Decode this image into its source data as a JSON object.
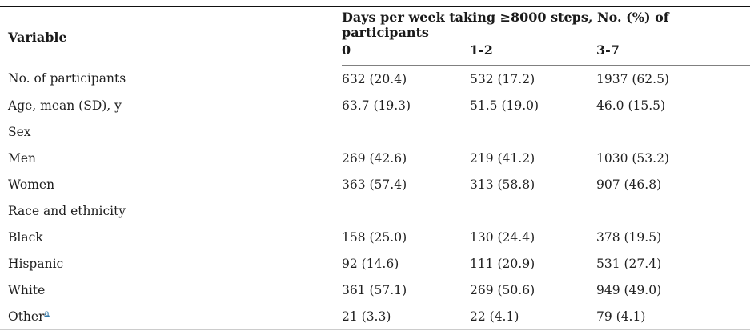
{
  "table": {
    "header": {
      "variable_label": "Variable",
      "group_label": "Days per week taking ≥8000 steps, No. (%) of participants",
      "columns": [
        "0",
        "1-2",
        "3-7"
      ]
    },
    "rows": [
      {
        "label": "No. of participants",
        "values": [
          "632 (20.4)",
          "532 (17.2)",
          "1937 (62.5)"
        ]
      },
      {
        "label": "Age, mean (SD), y",
        "values": [
          "63.7 (19.3)",
          "51.5 (19.0)",
          "46.0 (15.5)"
        ]
      },
      {
        "label": "Sex",
        "section": true,
        "values": [
          "",
          "",
          ""
        ]
      },
      {
        "label": "Men",
        "values": [
          "269 (42.6)",
          "219 (41.2)",
          "1030 (53.2)"
        ]
      },
      {
        "label": "Women",
        "values": [
          "363 (57.4)",
          "313 (58.8)",
          "907 (46.8)"
        ]
      },
      {
        "label": "Race and ethnicity",
        "section": true,
        "values": [
          "",
          "",
          ""
        ]
      },
      {
        "label": "Black",
        "values": [
          "158 (25.0)",
          "130 (24.4)",
          "378 (19.5)"
        ]
      },
      {
        "label": "Hispanic",
        "values": [
          "92 (14.6)",
          "111 (20.9)",
          "531 (27.4)"
        ]
      },
      {
        "label": "White",
        "values": [
          "361 (57.1)",
          "269 (50.6)",
          "949 (49.0)"
        ]
      },
      {
        "label": "Other",
        "footnote": "a",
        "values": [
          "21 (3.3)",
          "22 (4.1)",
          "79 (4.1)"
        ]
      }
    ],
    "colors": {
      "text": "#1f1f1f",
      "top_rule": "#111111",
      "header_rule": "#808080",
      "bottom_rule": "#cccccc",
      "footnote_link": "#2e77a8"
    }
  }
}
